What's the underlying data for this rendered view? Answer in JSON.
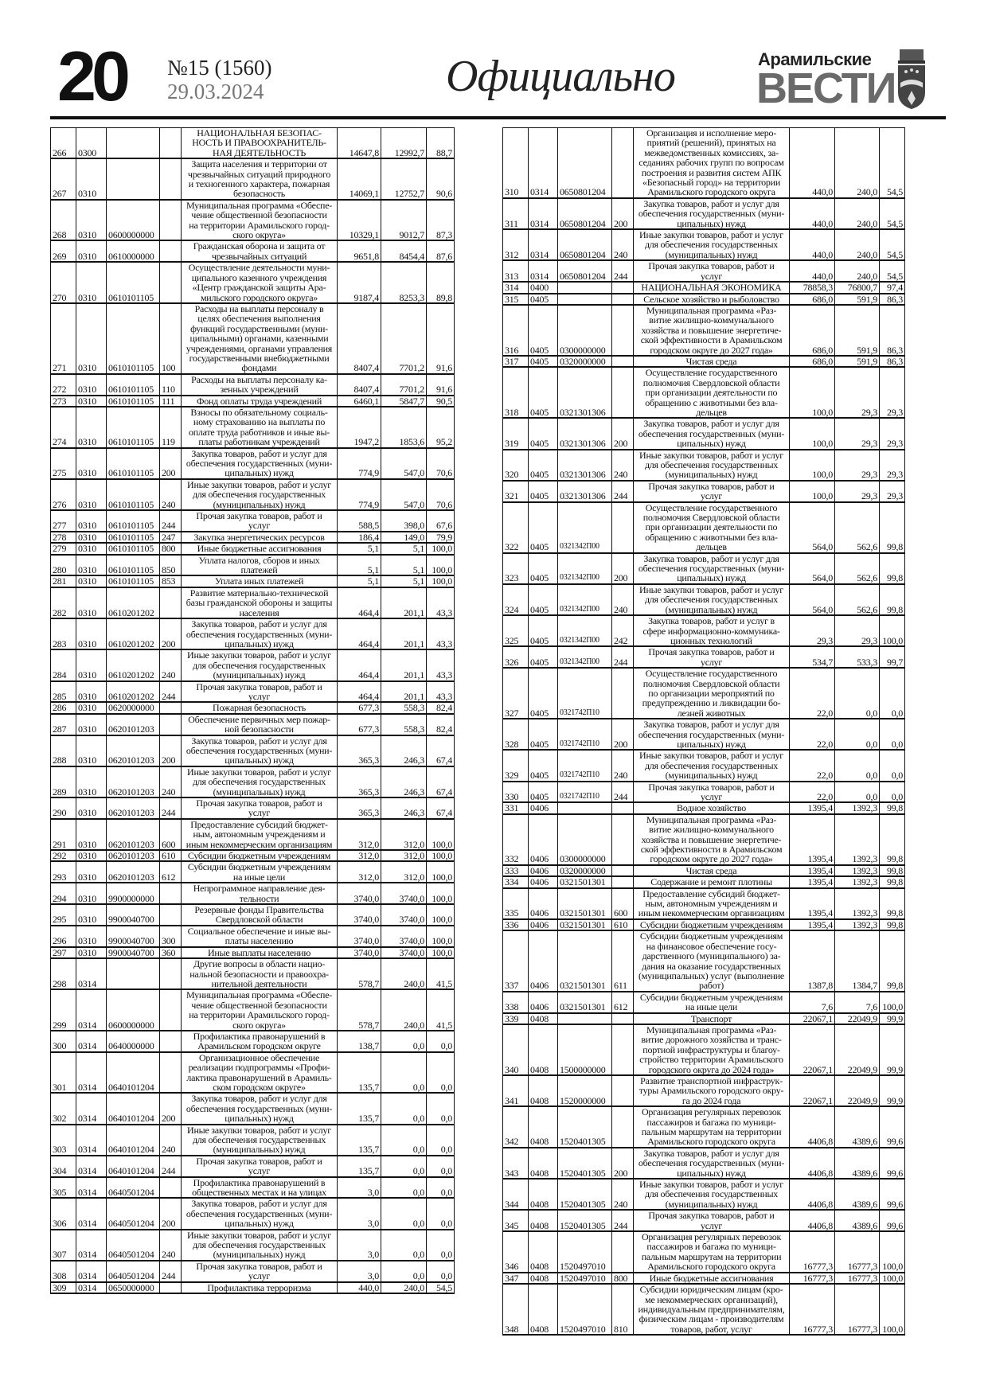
{
  "header": {
    "page_number": "20",
    "issue": "№15 (1560)",
    "date": "29.03.2024",
    "section": "Официально",
    "logo_top": "Арамильские",
    "logo_main": "ВЕСТИ"
  },
  "left_rows": [
    [
      "266",
      "0300",
      "",
      "",
      "НАЦИОНАЛЬНАЯ БЕЗОПАС-\nНОСТЬ И ПРАВООХРАНИТЕЛЬ-\nНАЯ ДЕЯТЕЛЬНОСТЬ",
      "14647,8",
      "12992,7",
      "88,7"
    ],
    [
      "267",
      "0310",
      "",
      "",
      "Защита населения и территории от\nчрезвычайных ситуаций природного\nи техногенного характера, пожарная\nбезопасность",
      "14069,1",
      "12752,7",
      "90,6"
    ],
    [
      "268",
      "0310",
      "0600000000",
      "",
      "Муниципальная программа «Обеспе-\nчение общественной безопасности\nна территории Арамильского город-\nского округа»",
      "10329,1",
      "9012,7",
      "87,3"
    ],
    [
      "269",
      "0310",
      "0610000000",
      "",
      "Гражданская оборона и защита от\nчрезвычайных ситуаций",
      "9651,8",
      "8454,4",
      "87,6"
    ],
    [
      "270",
      "0310",
      "0610101105",
      "",
      "Осуществление деятельности муни-\nципального казенного учреждения\n«Центр гражданской защиты Ара-\nмильского городского округа»",
      "9187,4",
      "8253,3",
      "89,8"
    ],
    [
      "271",
      "0310",
      "0610101105",
      "100",
      "Расходы на выплаты персоналу в\nцелях обеспечения выполнения\nфункций государственными (муни-\nципальными) органами, казенными\nучреждениями, органами управления\nгосударственными внебюджетными\nфондами",
      "8407,4",
      "7701,2",
      "91,6"
    ],
    [
      "272",
      "0310",
      "0610101105",
      "110",
      "Расходы на выплаты персоналу ка-\nзенных учреждений",
      "8407,4",
      "7701,2",
      "91,6"
    ],
    [
      "273",
      "0310",
      "0610101105",
      "111",
      "Фонд оплаты труда учреждений",
      "6460,1",
      "5847,7",
      "90,5"
    ],
    [
      "274",
      "0310",
      "0610101105",
      "119",
      "Взносы по обязательному социаль-\nному страхованию на выплаты по\nоплате труда работников и иные вы-\nплаты работникам учреждений",
      "1947,2",
      "1853,6",
      "95,2"
    ],
    [
      "275",
      "0310",
      "0610101105",
      "200",
      "Закупка товаров, работ и услуг для\nобеспечения государственных (муни-\nципальных) нужд",
      "774,9",
      "547,0",
      "70,6"
    ],
    [
      "276",
      "0310",
      "0610101105",
      "240",
      "Иные закупки товаров, работ и услуг\nдля обеспечения государственных\n(муниципальных) нужд",
      "774,9",
      "547,0",
      "70,6"
    ],
    [
      "277",
      "0310",
      "0610101105",
      "244",
      "Прочая закупка товаров, работ и\nуслуг",
      "588,5",
      "398,0",
      "67,6"
    ],
    [
      "278",
      "0310",
      "0610101105",
      "247",
      "Закупка энергетических ресурсов",
      "186,4",
      "149,0",
      "79,9"
    ],
    [
      "279",
      "0310",
      "0610101105",
      "800",
      "Иные бюджетные ассигнования",
      "5,1",
      "5,1",
      "100,0"
    ],
    [
      "280",
      "0310",
      "0610101105",
      "850",
      "Уплата налогов, сборов и иных\nплатежей",
      "5,1",
      "5,1",
      "100,0"
    ],
    [
      "281",
      "0310",
      "0610101105",
      "853",
      "Уплата иных платежей",
      "5,1",
      "5,1",
      "100,0"
    ],
    [
      "282",
      "0310",
      "0610201202",
      "",
      "Развитие материально-технической\nбазы гражданской обороны и защиты\nнаселения",
      "464,4",
      "201,1",
      "43,3"
    ],
    [
      "283",
      "0310",
      "0610201202",
      "200",
      "Закупка товаров, работ и услуг для\nобеспечения государственных (муни-\nципальных) нужд",
      "464,4",
      "201,1",
      "43,3"
    ],
    [
      "284",
      "0310",
      "0610201202",
      "240",
      "Иные закупки товаров, работ и услуг\nдля обеспечения государственных\n(муниципальных) нужд",
      "464,4",
      "201,1",
      "43,3"
    ],
    [
      "285",
      "0310",
      "0610201202",
      "244",
      "Прочая закупка товаров, работ и\nуслуг",
      "464,4",
      "201,1",
      "43,3"
    ],
    [
      "286",
      "0310",
      "0620000000",
      "",
      "Пожарная безопасность",
      "677,3",
      "558,3",
      "82,4"
    ],
    [
      "287",
      "0310",
      "0620101203",
      "",
      "Обеспечение первичных мер пожар-\nной безопасности",
      "677,3",
      "558,3",
      "82,4"
    ],
    [
      "288",
      "0310",
      "0620101203",
      "200",
      "Закупка товаров, работ и услуг для\nобеспечения государственных (муни-\nципальных) нужд",
      "365,3",
      "246,3",
      "67,4"
    ],
    [
      "289",
      "0310",
      "0620101203",
      "240",
      "Иные закупки товаров, работ и услуг\nдля обеспечения государственных\n(муниципальных) нужд",
      "365,3",
      "246,3",
      "67,4"
    ],
    [
      "290",
      "0310",
      "0620101203",
      "244",
      "Прочая закупка товаров, работ и\nуслуг",
      "365,3",
      "246,3",
      "67,4"
    ],
    [
      "291",
      "0310",
      "0620101203",
      "600",
      "Предоставление субсидий бюджет-\nным, автономным учреждениям и\nиным некоммерческим организациям",
      "312,0",
      "312,0",
      "100,0"
    ],
    [
      "292",
      "0310",
      "0620101203",
      "610",
      "Субсидии бюджетным учреждениям",
      "312,0",
      "312,0",
      "100,0"
    ],
    [
      "293",
      "0310",
      "0620101203",
      "612",
      "Субсидии бюджетным учреждениям\nна иные цели",
      "312,0",
      "312,0",
      "100,0"
    ],
    [
      "294",
      "0310",
      "9900000000",
      "",
      "Непрограммное направление дея-\nтельности",
      "3740,0",
      "3740,0",
      "100,0"
    ],
    [
      "295",
      "0310",
      "9900040700",
      "",
      "Резервные фонды Правительства\nСвердловской области",
      "3740,0",
      "3740,0",
      "100,0"
    ],
    [
      "296",
      "0310",
      "9900040700",
      "300",
      "Социальное обеспечение и иные вы-\nплаты населению",
      "3740,0",
      "3740,0",
      "100,0"
    ],
    [
      "297",
      "0310",
      "9900040700",
      "360",
      "Иные выплаты населению",
      "3740,0",
      "3740,0",
      "100,0"
    ],
    [
      "298",
      "0314",
      "",
      "",
      "Другие вопросы в области нацио-\nнальной безопасности и правоохра-\nнительной деятельности",
      "578,7",
      "240,0",
      "41,5"
    ],
    [
      "299",
      "0314",
      "0600000000",
      "",
      "Муниципальная программа «Обеспе-\nчение общественной безопасности\nна территории Арамильского город-\nского округа»",
      "578,7",
      "240,0",
      "41,5"
    ],
    [
      "300",
      "0314",
      "0640000000",
      "",
      "Профилактика правонарушений в\nАрамильском городском округе",
      "138,7",
      "0,0",
      "0,0"
    ],
    [
      "301",
      "0314",
      "0640101204",
      "",
      "Организационное обеспечение\nреализации подпрограммы «Профи-\nлактика правонарушений в Арамиль-\nском городском округе»",
      "135,7",
      "0,0",
      "0,0"
    ],
    [
      "302",
      "0314",
      "0640101204",
      "200",
      "Закупка товаров, работ и услуг для\nобеспечения государственных (муни-\nципальных) нужд",
      "135,7",
      "0,0",
      "0,0"
    ],
    [
      "303",
      "0314",
      "0640101204",
      "240",
      "Иные закупки товаров, работ и услуг\nдля обеспечения государственных\n(муниципальных) нужд",
      "135,7",
      "0,0",
      "0,0"
    ],
    [
      "304",
      "0314",
      "0640101204",
      "244",
      "Прочая закупка товаров, работ и\nуслуг",
      "135,7",
      "0,0",
      "0,0"
    ],
    [
      "305",
      "0314",
      "0640501204",
      "",
      "Профилактика правонарушений в\nобщественных местах и на улицах",
      "3,0",
      "0,0",
      "0,0"
    ],
    [
      "306",
      "0314",
      "0640501204",
      "200",
      "Закупка товаров, работ и услуг для\nобеспечения государственных (муни-\nципальных) нужд",
      "3,0",
      "0,0",
      "0,0"
    ],
    [
      "307",
      "0314",
      "0640501204",
      "240",
      "Иные закупки товаров, работ и услуг\nдля обеспечения государственных\n(муниципальных) нужд",
      "3,0",
      "0,0",
      "0,0"
    ],
    [
      "308",
      "0314",
      "0640501204",
      "244",
      "Прочая закупка товаров, работ и\nуслуг",
      "3,0",
      "0,0",
      "0,0"
    ],
    [
      "309",
      "0314",
      "0650000000",
      "",
      "Профилактика терроризма",
      "440,0",
      "240,0",
      "54,5"
    ]
  ],
  "right_rows": [
    [
      "310",
      "0314",
      "0650801204",
      "",
      "Организация и исполнение меро-\nприятий (решений), принятых на\nмежведомственных комиссиях, за-\nседаниях рабочих групп по вопросам\nпостроения и развития систем АПК\n«Безопасный город» на территории\nАрамильского городского округа",
      "440,0",
      "240,0",
      "54,5"
    ],
    [
      "311",
      "0314",
      "0650801204",
      "200",
      "Закупка товаров, работ и услуг для\nобеспечения государственных (муни-\nципальных) нужд",
      "440,0",
      "240,0",
      "54,5"
    ],
    [
      "312",
      "0314",
      "0650801204",
      "240",
      "Иные закупки товаров, работ и услуг\nдля обеспечения государственных\n(муниципальных) нужд",
      "440,0",
      "240,0",
      "54,5"
    ],
    [
      "313",
      "0314",
      "0650801204",
      "244",
      "Прочая закупка товаров, работ и\nуслуг",
      "440,0",
      "240,0",
      "54,5"
    ],
    [
      "314",
      "0400",
      "",
      "",
      "НАЦИОНАЛЬНАЯ ЭКОНОМИКА",
      "78858,3",
      "76800,7",
      "97,4"
    ],
    [
      "315",
      "0405",
      "",
      "",
      "Сельское хозяйство и рыболовство",
      "686,0",
      "591,9",
      "86,3"
    ],
    [
      "316",
      "0405",
      "0300000000",
      "",
      "Муниципальная программа «Раз-\nвитие жилищно-коммунального\nхозяйства и повышение энергетиче-\nской эффективности в Арамильском\nгородском округе до 2027 года»",
      "686,0",
      "591,9",
      "86,3"
    ],
    [
      "317",
      "0405",
      "0320000000",
      "",
      "Чистая среда",
      "686,0",
      "591,9",
      "86,3"
    ],
    [
      "318",
      "0405",
      "0321301306",
      "",
      "Осуществление государственного\nполномочия Свердловской области\nпри организации деятельности по\nобращению с животными без вла-\nдельцев",
      "100,0",
      "29,3",
      "29,3"
    ],
    [
      "319",
      "0405",
      "0321301306",
      "200",
      "Закупка товаров, работ и услуг для\nобеспечения государственных (муни-\nципальных) нужд",
      "100,0",
      "29,3",
      "29,3"
    ],
    [
      "320",
      "0405",
      "0321301306",
      "240",
      "Иные закупки товаров, работ и услуг\nдля обеспечения государственных\n(муниципальных) нужд",
      "100,0",
      "29,3",
      "29,3"
    ],
    [
      "321",
      "0405",
      "0321301306",
      "244",
      "Прочая закупка товаров, работ и\nуслуг",
      "100,0",
      "29,3",
      "29,3"
    ],
    [
      "322",
      "0405",
      "0321342П00",
      "",
      "Осуществление государственного\nполномочия Свердловской области\nпри организации деятельности по\nобращению с животными без вла-\nдельцев",
      "564,0",
      "562,6",
      "99,8"
    ],
    [
      "323",
      "0405",
      "0321342П00",
      "200",
      "Закупка товаров, работ и услуг для\nобеспечения государственных (муни-\nципальных) нужд",
      "564,0",
      "562,6",
      "99,8"
    ],
    [
      "324",
      "0405",
      "0321342П00",
      "240",
      "Иные закупки товаров, работ и услуг\nдля обеспечения государственных\n(муниципальных) нужд",
      "564,0",
      "562,6",
      "99,8"
    ],
    [
      "325",
      "0405",
      "0321342П00",
      "242",
      "Закупка товаров, работ и услуг в\nсфере информационно-коммуника-\nционных технологий",
      "29,3",
      "29,3",
      "100,0"
    ],
    [
      "326",
      "0405",
      "0321342П00",
      "244",
      "Прочая закупка товаров, работ и\nуслуг",
      "534,7",
      "533,3",
      "99,7"
    ],
    [
      "327",
      "0405",
      "0321742П10",
      "",
      "Осуществление государственного\nполномочия Свердловской области\nпо организации мероприятий по\nпредупреждению и ликвидации бо-\nлезней животных",
      "22,0",
      "0,0",
      "0,0"
    ],
    [
      "328",
      "0405",
      "0321742П10",
      "200",
      "Закупка товаров, работ и услуг для\nобеспечения государственных (муни-\nципальных) нужд",
      "22,0",
      "0,0",
      "0,0"
    ],
    [
      "329",
      "0405",
      "0321742П10",
      "240",
      "Иные закупки товаров, работ и услуг\nдля обеспечения государственных\n(муниципальных) нужд",
      "22,0",
      "0,0",
      "0,0"
    ],
    [
      "330",
      "0405",
      "0321742П10",
      "244",
      "Прочая закупка товаров, работ и\nуслуг",
      "22,0",
      "0,0",
      "0,0"
    ],
    [
      "331",
      "0406",
      "",
      "",
      "Водное хозяйство",
      "1395,4",
      "1392,3",
      "99,8"
    ],
    [
      "332",
      "0406",
      "0300000000",
      "",
      "Муниципальная программа «Раз-\nвитие жилищно-коммунального\nхозяйства и повышение энергетиче-\nской эффективности в Арамильском\nгородском округе до 2027 года»",
      "1395,4",
      "1392,3",
      "99,8"
    ],
    [
      "333",
      "0406",
      "0320000000",
      "",
      "Чистая среда",
      "1395,4",
      "1392,3",
      "99,8"
    ],
    [
      "334",
      "0406",
      "0321501301",
      "",
      "Содержание и ремонт плотины",
      "1395,4",
      "1392,3",
      "99,8"
    ],
    [
      "335",
      "0406",
      "0321501301",
      "600",
      "Предоставление субсидий бюджет-\nным, автономным учреждениям и\nиным некоммерческим организациям",
      "1395,4",
      "1392,3",
      "99,8"
    ],
    [
      "336",
      "0406",
      "0321501301",
      "610",
      "Субсидии бюджетным учреждениям",
      "1395,4",
      "1392,3",
      "99,8"
    ],
    [
      "337",
      "0406",
      "0321501301",
      "611",
      "Субсидии бюджетным учреждениям\nна финансовое обеспечение госу-\nдарственного (муниципального) за-\nдания на оказание государственных\n(муниципальных) услуг (выполнение\nработ)",
      "1387,8",
      "1384,7",
      "99,8"
    ],
    [
      "338",
      "0406",
      "0321501301",
      "612",
      "Субсидии бюджетным учреждениям\nна иные цели",
      "7,6",
      "7,6",
      "100,0"
    ],
    [
      "339",
      "0408",
      "",
      "",
      "Транспорт",
      "22067,1",
      "22049,9",
      "99,9"
    ],
    [
      "340",
      "0408",
      "1500000000",
      "",
      "Муниципальная программа «Раз-\nвитие дорожного хозяйства и транс-\nпортной инфраструктуры и благоу-\nстройство территории Арамильского\nгородского округа до 2024 года»",
      "22067,1",
      "22049,9",
      "99,9"
    ],
    [
      "341",
      "0408",
      "1520000000",
      "",
      "Развитие транспортной инфраструк-\nтуры Арамильского городского окру-\nга до 2024 года",
      "22067,1",
      "22049,9",
      "99,9"
    ],
    [
      "342",
      "0408",
      "1520401305",
      "",
      "Организация регулярных перевозок\nпассажиров и багажа по муници-\nпальным маршрутам на территории\nАрамильского городского округа",
      "4406,8",
      "4389,6",
      "99,6"
    ],
    [
      "343",
      "0408",
      "1520401305",
      "200",
      "Закупка товаров, работ и услуг для\nобеспечения государственных (муни-\nципальных) нужд",
      "4406,8",
      "4389,6",
      "99,6"
    ],
    [
      "344",
      "0408",
      "1520401305",
      "240",
      "Иные закупки товаров, работ и услуг\nдля обеспечения государственных\n(муниципальных) нужд",
      "4406,8",
      "4389,6",
      "99,6"
    ],
    [
      "345",
      "0408",
      "1520401305",
      "244",
      "Прочая закупка товаров, работ и\nуслуг",
      "4406,8",
      "4389,6",
      "99,6"
    ],
    [
      "346",
      "0408",
      "1520497010",
      "",
      "Организация регулярных перевозок\nпассажиров и багажа по муници-\nпальным маршрутам на территории\nАрамильского городского округа",
      "16777,3",
      "16777,3",
      "100,0"
    ],
    [
      "347",
      "0408",
      "1520497010",
      "800",
      "Иные бюджетные ассигнования",
      "16777,3",
      "16777,3",
      "100,0"
    ],
    [
      "348",
      "0408",
      "1520497010",
      "810",
      "Субсидии юридическим лицам (кро-\nме некоммерческих организаций),\nиндивидуальным предпринимателям,\nфизическим лицам - производителям\nтоваров, работ, услуг",
      "16777,3",
      "16777,3",
      "100,0"
    ]
  ]
}
